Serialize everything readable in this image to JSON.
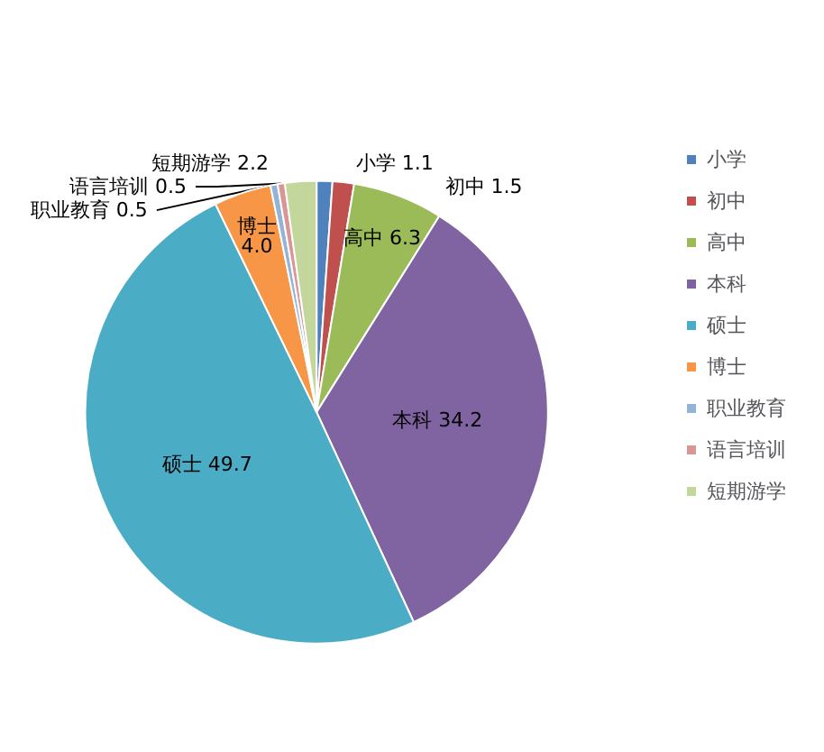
{
  "chart_data": {
    "type": "pie",
    "categories": [
      "小学",
      "初中",
      "高中",
      "本科",
      "硕士",
      "博士",
      "职业教育",
      "语言培训",
      "短期游学"
    ],
    "values": [
      1.1,
      1.5,
      6.3,
      34.2,
      49.7,
      4.0,
      0.5,
      0.5,
      2.2
    ],
    "value_labels": [
      "1.1",
      "1.5",
      "6.3",
      "34.2",
      "49.7",
      "4.0",
      "0.5",
      "0.5",
      "2.2"
    ],
    "colors": [
      "#4f81bd",
      "#c0504d",
      "#9bbb59",
      "#8064a2",
      "#4bacc6",
      "#f79646",
      "#95b3d7",
      "#d99694",
      "#c3d69b"
    ],
    "legend": "right"
  }
}
